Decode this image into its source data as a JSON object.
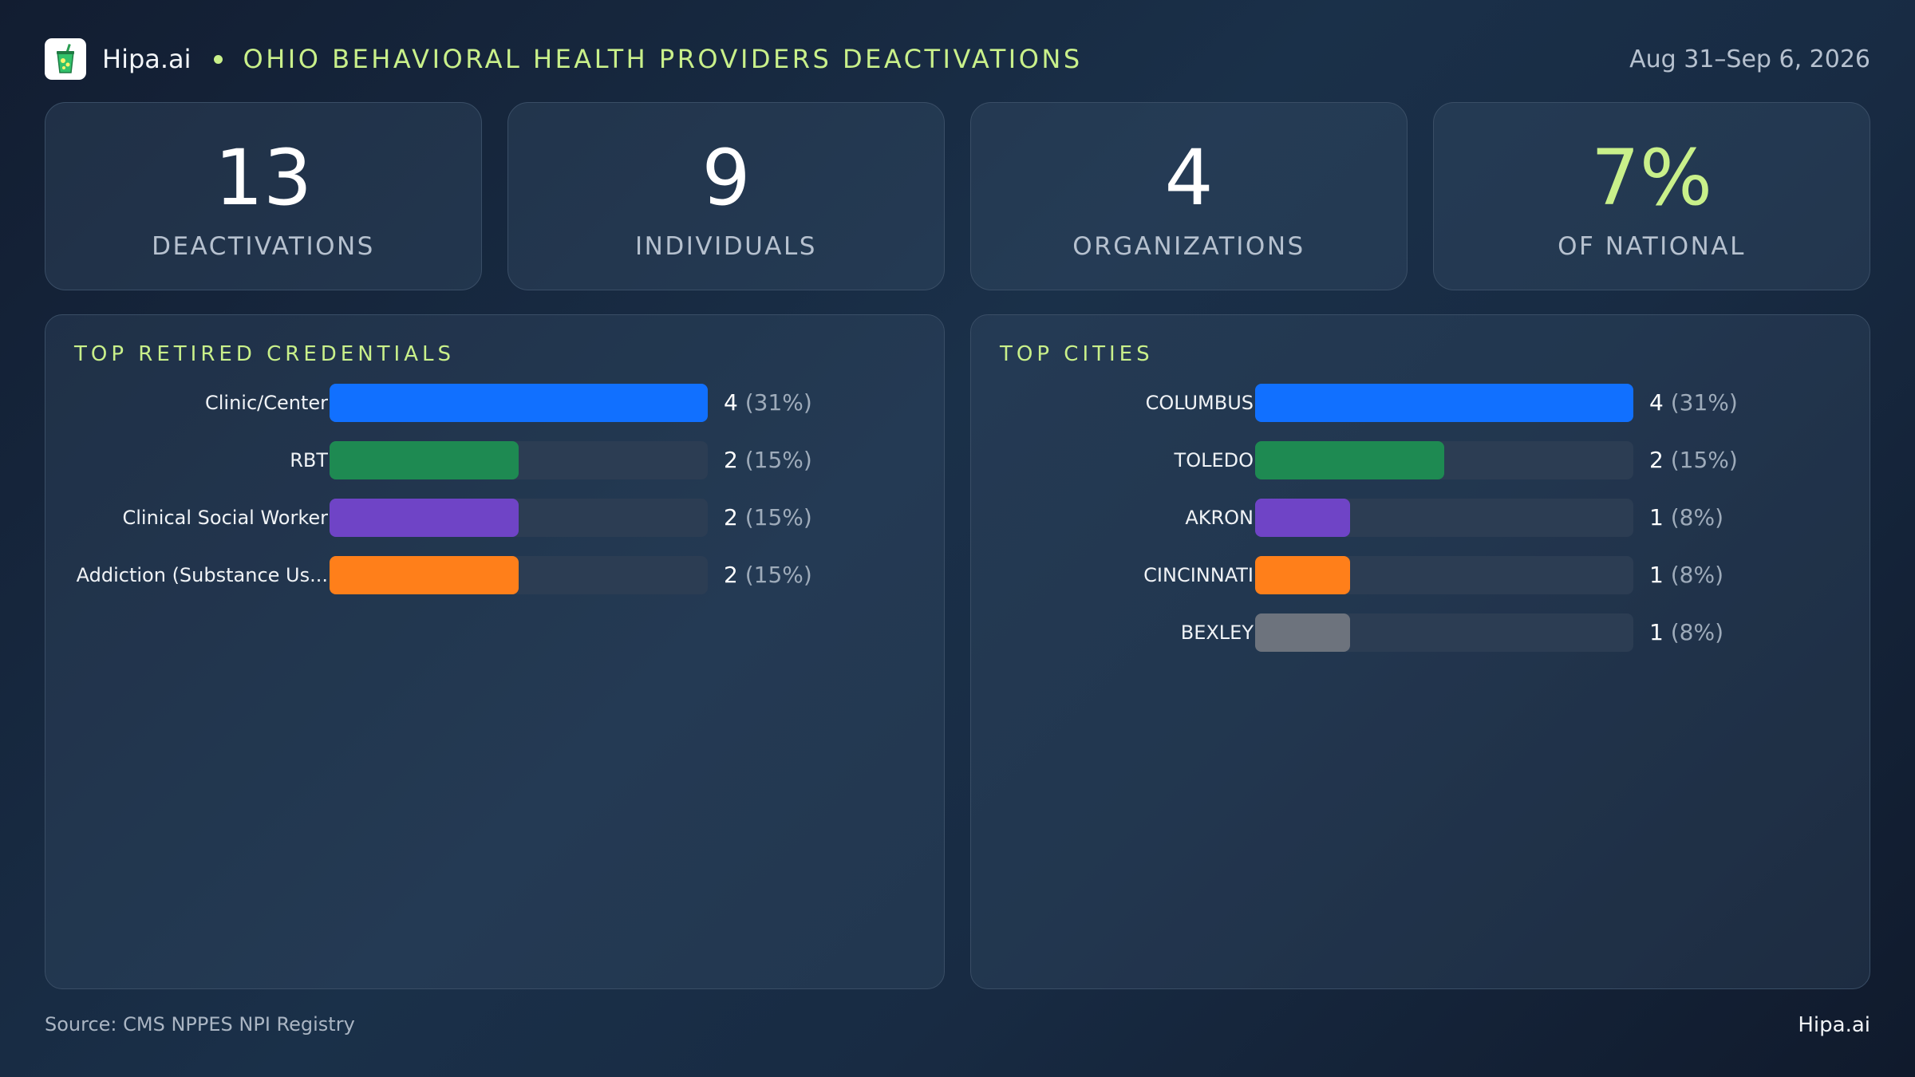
{
  "header": {
    "brand": "Hipa.ai",
    "title": "OHIO BEHAVIORAL HEALTH PROVIDERS DEACTIVATIONS",
    "date_range": "Aug 31–Sep 6, 2026",
    "logo_icon": "cup-drink-icon"
  },
  "kpis": [
    {
      "value": "13",
      "label": "DEACTIVATIONS"
    },
    {
      "value": "9",
      "label": "INDIVIDUALS"
    },
    {
      "value": "4",
      "label": "ORGANIZATIONS"
    },
    {
      "value": "7%",
      "label": "OF NATIONAL"
    }
  ],
  "colors": {
    "accent": "#c9f08a",
    "blue": "#1170ff",
    "green": "#1e8a52",
    "purple": "#6f44c6",
    "orange": "#ff7f1a",
    "gray": "#6d737d",
    "track": "#2c3d53"
  },
  "chart_data": [
    {
      "type": "bar",
      "orientation": "horizontal",
      "title": "TOP RETIRED CREDENTIALS",
      "categories": [
        "Clinic/Center",
        "RBT",
        "Clinical Social Worker",
        "Addiction (Substance Us..."
      ],
      "values": [
        4,
        2,
        2,
        2
      ],
      "value_labels": [
        "(31%)",
        "(15%)",
        "(15%)",
        "(15%)"
      ],
      "xlim": [
        0,
        4
      ],
      "bar_colors": [
        "#1170ff",
        "#1e8a52",
        "#6f44c6",
        "#ff7f1a"
      ]
    },
    {
      "type": "bar",
      "orientation": "horizontal",
      "title": "TOP CITIES",
      "categories": [
        "COLUMBUS",
        "TOLEDO",
        "AKRON",
        "CINCINNATI",
        "BEXLEY"
      ],
      "values": [
        4,
        2,
        1,
        1,
        1
      ],
      "value_labels": [
        "(31%)",
        "(15%)",
        "(8%)",
        "(8%)",
        "(8%)"
      ],
      "xlim": [
        0,
        4
      ],
      "bar_colors": [
        "#1170ff",
        "#1e8a52",
        "#6f44c6",
        "#ff7f1a",
        "#6d737d"
      ]
    }
  ],
  "footer": {
    "source": "Source: CMS NPPES NPI Registry",
    "brand": "Hipa.ai"
  }
}
